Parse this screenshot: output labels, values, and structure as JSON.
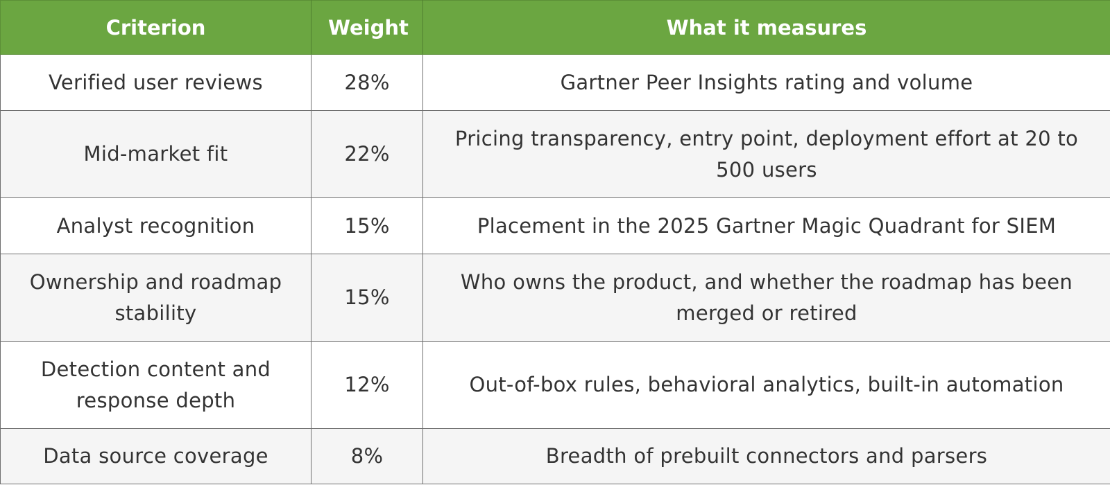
{
  "table": {
    "headers": [
      "Criterion",
      "Weight",
      "What it measures"
    ],
    "rows": [
      {
        "criterion": "Verified user reviews",
        "weight": "28%",
        "measures": "Gartner Peer Insights rating and volume"
      },
      {
        "criterion": "Mid-market fit",
        "weight": "22%",
        "measures": "Pricing transparency, entry point, deployment effort at 20 to 500 users"
      },
      {
        "criterion": "Analyst recognition",
        "weight": "15%",
        "measures": "Placement in the 2025 Gartner Magic Quadrant for SIEM"
      },
      {
        "criterion": "Ownership and roadmap stability",
        "weight": "15%",
        "measures": "Who owns the product, and whether the roadmap has been merged or retired"
      },
      {
        "criterion": "Detection content and response depth",
        "weight": "12%",
        "measures": "Out-of-box rules, behavioral analytics, built-in automation"
      },
      {
        "criterion": "Data source coverage",
        "weight": "8%",
        "measures": "Breadth of prebuilt connectors and parsers"
      }
    ]
  },
  "colors": {
    "header_bg": "#6ba641",
    "header_text": "#ffffff",
    "row_alt_bg": "#f5f5f5",
    "border": "#6e6e6e"
  }
}
